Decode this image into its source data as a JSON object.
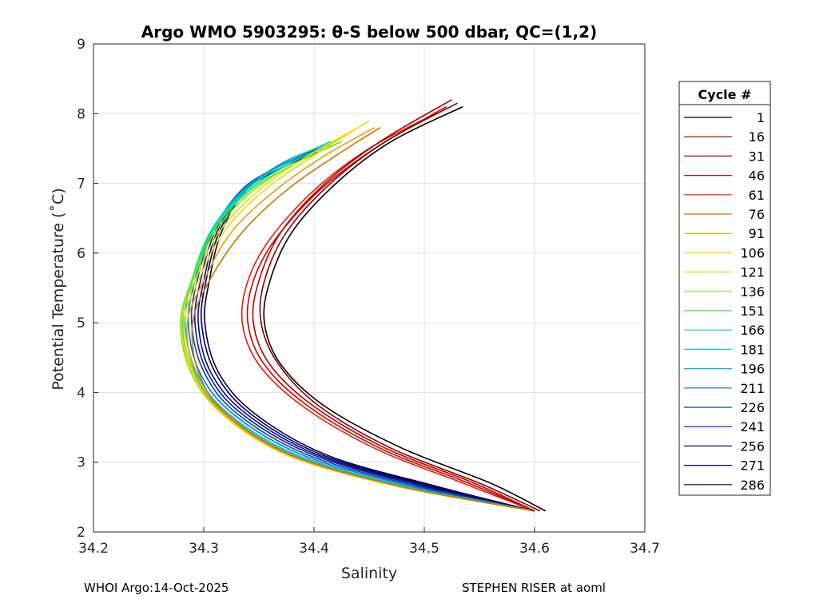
{
  "chart_data": {
    "type": "line",
    "title": "Argo WMO 5903295: θ-S below 500 dbar,  QC=(1,2)",
    "xlabel": "Salinity",
    "ylabel": "Potential Temperature (˚C)",
    "xlim": [
      34.2,
      34.7
    ],
    "ylim": [
      2,
      9
    ],
    "x_ticks": [
      34.2,
      34.3,
      34.4,
      34.5,
      34.6,
      34.7
    ],
    "x_tick_labels": [
      "34.2",
      "34.3",
      "34.4",
      "34.5",
      "34.6",
      "34.7"
    ],
    "y_ticks": [
      2,
      3,
      4,
      5,
      6,
      7,
      8,
      9
    ],
    "y_tick_labels": [
      "2",
      "3",
      "4",
      "5",
      "6",
      "7",
      "8",
      "9"
    ],
    "grid": true,
    "legend_title": "Cycle #",
    "legend_placement": "right-outside",
    "series": [
      {
        "name": "1",
        "color": "#000000",
        "x": [
          34.535,
          34.47,
          34.42,
          34.38,
          34.36,
          34.355,
          34.37,
          34.41,
          34.48,
          34.56,
          34.61
        ],
        "y": [
          8.1,
          7.6,
          7.0,
          6.3,
          5.6,
          5.0,
          4.4,
          3.8,
          3.2,
          2.7,
          2.3
        ]
      },
      {
        "name": "16",
        "color": "#8b0000",
        "x": [
          34.53,
          34.465,
          34.415,
          34.375,
          34.355,
          34.352,
          34.368,
          34.405,
          34.47,
          34.55,
          34.605
        ],
        "y": [
          8.15,
          7.6,
          7.0,
          6.3,
          5.6,
          5.0,
          4.4,
          3.8,
          3.2,
          2.7,
          2.3
        ]
      },
      {
        "name": "31",
        "color": "#b30000",
        "x": [
          34.525,
          34.46,
          34.41,
          34.37,
          34.35,
          34.345,
          34.36,
          34.4,
          34.465,
          34.545,
          34.6
        ],
        "y": [
          8.2,
          7.6,
          7.0,
          6.3,
          5.6,
          5.0,
          4.4,
          3.8,
          3.2,
          2.7,
          2.3
        ]
      },
      {
        "name": "46",
        "color": "#d40000",
        "x": [
          34.52,
          34.455,
          34.405,
          34.365,
          34.345,
          34.34,
          34.355,
          34.395,
          34.46,
          34.54,
          34.6
        ],
        "y": [
          8.1,
          7.5,
          6.9,
          6.2,
          5.6,
          5.0,
          4.4,
          3.8,
          3.2,
          2.7,
          2.3
        ]
      },
      {
        "name": "61",
        "color": "#e81c00",
        "x": [
          34.51,
          34.45,
          34.4,
          34.36,
          34.34,
          34.335,
          34.35,
          34.39,
          34.455,
          34.535,
          34.6
        ],
        "y": [
          8.0,
          7.5,
          6.9,
          6.2,
          5.6,
          5.0,
          4.4,
          3.8,
          3.2,
          2.7,
          2.3
        ]
      },
      {
        "name": "76",
        "color": "#c87800",
        "x": [
          34.46,
          34.42,
          34.375,
          34.335,
          34.305,
          34.29,
          34.295,
          34.32,
          34.38,
          34.48,
          34.6
        ],
        "y": [
          7.8,
          7.4,
          6.9,
          6.3,
          5.6,
          5.0,
          4.3,
          3.7,
          3.1,
          2.65,
          2.3
        ]
      },
      {
        "name": "91",
        "color": "#e6a000",
        "x": [
          34.455,
          34.41,
          34.365,
          34.325,
          34.3,
          34.285,
          34.292,
          34.318,
          34.378,
          34.478,
          34.6
        ],
        "y": [
          7.8,
          7.4,
          6.9,
          6.3,
          5.6,
          5.0,
          4.3,
          3.7,
          3.1,
          2.65,
          2.3
        ]
      },
      {
        "name": "106",
        "color": "#ffd400",
        "x": [
          34.45,
          34.4,
          34.355,
          34.318,
          34.295,
          34.282,
          34.29,
          34.316,
          34.376,
          34.476,
          34.6
        ],
        "y": [
          7.9,
          7.4,
          6.9,
          6.3,
          5.6,
          5.0,
          4.3,
          3.7,
          3.1,
          2.65,
          2.3
        ]
      },
      {
        "name": "121",
        "color": "#d4e600",
        "x": [
          34.44,
          34.395,
          34.35,
          34.314,
          34.292,
          34.28,
          34.289,
          34.316,
          34.376,
          34.476,
          34.6
        ],
        "y": [
          7.8,
          7.4,
          6.9,
          6.3,
          5.6,
          5.0,
          4.3,
          3.7,
          3.1,
          2.65,
          2.3
        ]
      },
      {
        "name": "136",
        "color": "#8fe600",
        "x": [
          34.43,
          34.39,
          34.345,
          34.31,
          34.29,
          34.279,
          34.288,
          34.316,
          34.377,
          34.477,
          34.6
        ],
        "y": [
          7.7,
          7.35,
          6.9,
          6.3,
          5.6,
          5.0,
          4.3,
          3.7,
          3.1,
          2.65,
          2.3
        ]
      },
      {
        "name": "151",
        "color": "#3ce63c",
        "x": [
          34.425,
          34.385,
          34.342,
          34.308,
          34.289,
          34.279,
          34.289,
          34.317,
          34.378,
          34.478,
          34.6
        ],
        "y": [
          7.6,
          7.3,
          6.9,
          6.3,
          5.6,
          5.0,
          4.3,
          3.7,
          3.1,
          2.65,
          2.3
        ]
      },
      {
        "name": "166",
        "color": "#00e68c",
        "x": [
          34.42,
          34.38,
          34.34,
          34.307,
          34.289,
          34.28,
          34.29,
          34.318,
          34.38,
          34.48,
          34.6
        ],
        "y": [
          7.6,
          7.3,
          6.9,
          6.3,
          5.6,
          5.0,
          4.3,
          3.7,
          3.1,
          2.65,
          2.3
        ]
      },
      {
        "name": "181",
        "color": "#00d4d4",
        "x": [
          34.415,
          34.375,
          34.338,
          34.306,
          34.289,
          34.281,
          34.291,
          34.32,
          34.382,
          34.482,
          34.6
        ],
        "y": [
          7.6,
          7.3,
          6.9,
          6.3,
          5.6,
          5.0,
          4.3,
          3.7,
          3.1,
          2.65,
          2.3
        ]
      },
      {
        "name": "196",
        "color": "#00b4e6",
        "x": [
          34.41,
          34.372,
          34.336,
          34.306,
          34.29,
          34.283,
          34.293,
          34.322,
          34.385,
          34.485,
          34.6
        ],
        "y": [
          7.55,
          7.3,
          6.9,
          6.3,
          5.6,
          5.0,
          4.3,
          3.7,
          3.1,
          2.65,
          2.3
        ]
      },
      {
        "name": "211",
        "color": "#0078c8",
        "x": [
          34.408,
          34.37,
          34.335,
          34.307,
          34.292,
          34.286,
          34.296,
          34.326,
          34.39,
          34.49,
          34.6
        ],
        "y": [
          7.5,
          7.25,
          6.9,
          6.3,
          5.6,
          5.0,
          4.3,
          3.7,
          3.1,
          2.65,
          2.3
        ]
      },
      {
        "name": "226",
        "color": "#0046b4",
        "x": [
          34.405,
          34.368,
          34.334,
          34.308,
          34.294,
          34.289,
          34.3,
          34.33,
          34.395,
          34.495,
          34.6
        ],
        "y": [
          7.5,
          7.25,
          6.9,
          6.3,
          5.6,
          5.0,
          4.3,
          3.7,
          3.1,
          2.65,
          2.3
        ]
      },
      {
        "name": "241",
        "color": "#1414a0",
        "x": [
          34.405,
          34.368,
          34.335,
          34.31,
          34.297,
          34.292,
          34.303,
          34.334,
          34.4,
          34.5,
          34.6
        ],
        "y": [
          7.5,
          7.25,
          6.9,
          6.3,
          5.6,
          5.0,
          4.3,
          3.7,
          3.1,
          2.65,
          2.3
        ]
      },
      {
        "name": "256",
        "color": "#0a0a78",
        "x": [
          34.404,
          34.368,
          34.336,
          34.312,
          34.3,
          34.295,
          34.306,
          34.338,
          34.404,
          34.504,
          34.6
        ],
        "y": [
          7.5,
          7.25,
          6.9,
          6.3,
          5.6,
          5.0,
          4.3,
          3.7,
          3.1,
          2.65,
          2.3
        ]
      },
      {
        "name": "271",
        "color": "#00005a",
        "x": [
          34.403,
          34.368,
          34.337,
          34.314,
          34.302,
          34.298,
          34.31,
          34.342,
          34.408,
          34.508,
          34.6
        ],
        "y": [
          7.45,
          7.2,
          6.9,
          6.3,
          5.6,
          5.0,
          4.3,
          3.7,
          3.1,
          2.65,
          2.3
        ]
      },
      {
        "name": "286",
        "color": "#000046",
        "x": [
          34.402,
          34.368,
          34.338,
          34.316,
          34.305,
          34.301,
          34.313,
          34.346,
          34.412,
          34.512,
          34.6
        ],
        "y": [
          7.45,
          7.2,
          6.9,
          6.3,
          5.6,
          5.0,
          4.3,
          3.7,
          3.1,
          2.65,
          2.3
        ]
      }
    ]
  },
  "footer": {
    "left": "WHOI Argo:14-Oct-2025",
    "right": "STEPHEN RISER at aoml"
  }
}
